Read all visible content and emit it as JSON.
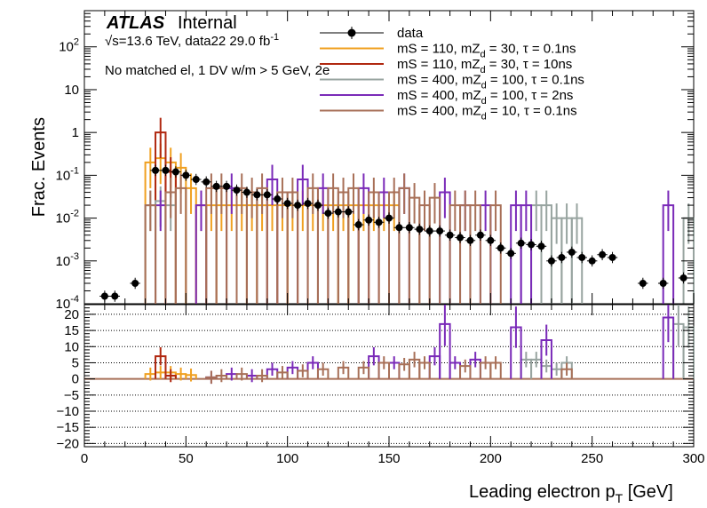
{
  "chart_data": [
    {
      "type": "histogram",
      "panel": "main",
      "ylabel": "Frac. Events",
      "yscale": "log",
      "ylim": [
        0.0001,
        700
      ],
      "xlim": [
        0,
        300
      ],
      "ytick_labels": [
        "10^{-4}",
        "10^{-3}",
        "10^{-2}",
        "10^{-1}",
        "1",
        "10",
        "10^{2}"
      ],
      "atlas_label": "ATLAS",
      "atlas_status": "Internal",
      "energy_text": "√s=13.6 TeV, data22 29.0 fb",
      "energy_sup": "-1",
      "selection_text": "No matched el, 1 DV w/m > 5 GeV, 2e",
      "legend": [
        {
          "label": "data",
          "color": "#000000",
          "kind": "marker"
        },
        {
          "label": "mS = 110, mZ_d = 30, τ = 0.1ns",
          "color": "#f0a020",
          "kind": "line"
        },
        {
          "label": "mS = 110, mZ_d = 30, τ = 10ns",
          "color": "#b02810",
          "kind": "line"
        },
        {
          "label": "mS = 400, mZ_d = 100, τ = 0.1ns",
          "color": "#98a4a0",
          "kind": "line"
        },
        {
          "label": "mS = 400, mZ_d = 100, τ = 2ns",
          "color": "#7a2ab8",
          "kind": "line"
        },
        {
          "label": "mS = 400, mZ_d = 10, τ = 0.1ns",
          "color": "#a87058",
          "kind": "line"
        }
      ],
      "data_points": [
        {
          "x": 10,
          "y": 0.00015
        },
        {
          "x": 15,
          "y": 0.00015
        },
        {
          "x": 25,
          "y": 0.0003
        },
        {
          "x": 35,
          "y": 0.13
        },
        {
          "x": 40,
          "y": 0.13
        },
        {
          "x": 45,
          "y": 0.12
        },
        {
          "x": 50,
          "y": 0.1
        },
        {
          "x": 55,
          "y": 0.08
        },
        {
          "x": 60,
          "y": 0.07
        },
        {
          "x": 65,
          "y": 0.055
        },
        {
          "x": 70,
          "y": 0.055
        },
        {
          "x": 75,
          "y": 0.045
        },
        {
          "x": 80,
          "y": 0.04
        },
        {
          "x": 85,
          "y": 0.035
        },
        {
          "x": 90,
          "y": 0.035
        },
        {
          "x": 95,
          "y": 0.028
        },
        {
          "x": 100,
          "y": 0.022
        },
        {
          "x": 105,
          "y": 0.02
        },
        {
          "x": 110,
          "y": 0.022
        },
        {
          "x": 115,
          "y": 0.02
        },
        {
          "x": 120,
          "y": 0.013
        },
        {
          "x": 125,
          "y": 0.014
        },
        {
          "x": 130,
          "y": 0.014
        },
        {
          "x": 135,
          "y": 0.007
        },
        {
          "x": 140,
          "y": 0.009
        },
        {
          "x": 145,
          "y": 0.008
        },
        {
          "x": 150,
          "y": 0.01
        },
        {
          "x": 155,
          "y": 0.006
        },
        {
          "x": 160,
          "y": 0.006
        },
        {
          "x": 165,
          "y": 0.0055
        },
        {
          "x": 170,
          "y": 0.005
        },
        {
          "x": 175,
          "y": 0.005
        },
        {
          "x": 180,
          "y": 0.004
        },
        {
          "x": 185,
          "y": 0.0035
        },
        {
          "x": 190,
          "y": 0.003
        },
        {
          "x": 195,
          "y": 0.004
        },
        {
          "x": 200,
          "y": 0.003
        },
        {
          "x": 205,
          "y": 0.002
        },
        {
          "x": 210,
          "y": 0.0015
        },
        {
          "x": 215,
          "y": 0.0026
        },
        {
          "x": 220,
          "y": 0.0024
        },
        {
          "x": 225,
          "y": 0.0022
        },
        {
          "x": 230,
          "y": 0.001
        },
        {
          "x": 235,
          "y": 0.0012
        },
        {
          "x": 240,
          "y": 0.0016
        },
        {
          "x": 245,
          "y": 0.0012
        },
        {
          "x": 250,
          "y": 0.001
        },
        {
          "x": 255,
          "y": 0.0014
        },
        {
          "x": 260,
          "y": 0.0012
        },
        {
          "x": 275,
          "y": 0.0003
        },
        {
          "x": 285,
          "y": 0.0003
        },
        {
          "x": 295,
          "y": 0.0004
        }
      ],
      "signal_series": [
        {
          "name": "mS = 110, mZ_d = 30, τ = 0.1ns",
          "color": "#f0a020",
          "bins": [
            [
              30,
              35,
              0.2
            ],
            [
              35,
              40,
              0.25
            ],
            [
              40,
              45,
              0.2
            ],
            [
              45,
              50,
              0.15
            ],
            [
              50,
              55,
              0.05
            ],
            [
              55,
              60,
              0.02
            ],
            [
              60,
              65,
              0.02
            ],
            [
              65,
              70,
              0.02
            ],
            [
              70,
              75,
              0.02
            ],
            [
              75,
              80,
              0.02
            ],
            [
              80,
              85,
              0.02
            ],
            [
              85,
              90,
              0.02
            ],
            [
              90,
              95,
              0.02
            ],
            [
              95,
              100,
              0.02
            ],
            [
              100,
              105,
              0.02
            ],
            [
              105,
              110,
              0.02
            ],
            [
              110,
              115,
              0.02
            ],
            [
              115,
              120,
              0.02
            ],
            [
              120,
              125,
              0.02
            ],
            [
              125,
              130,
              0.02
            ],
            [
              130,
              135,
              0.02
            ],
            [
              135,
              140,
              0.02
            ],
            [
              140,
              145,
              0.02
            ],
            [
              145,
              150,
              0.02
            ],
            [
              150,
              155,
              0.02
            ]
          ]
        },
        {
          "name": "mS = 110, mZ_d = 30, τ = 10ns",
          "color": "#b02810",
          "bins": [
            [
              35,
              40,
              1.0
            ],
            [
              40,
              45,
              0.12
            ]
          ]
        },
        {
          "name": "mS = 400, mZ_d = 100, τ = 0.1ns",
          "color": "#98a4a0",
          "bins": [
            [
              30,
              35,
              0.02
            ],
            [
              35,
              40,
              0.025
            ],
            [
              40,
              45,
              0.02
            ],
            [
              220,
              225,
              0.02
            ],
            [
              225,
              230,
              0.02
            ],
            [
              230,
              235,
              0.01
            ],
            [
              235,
              240,
              0.01
            ],
            [
              240,
              245,
              0.01
            ],
            [
              295,
              300,
              0.01
            ]
          ]
        },
        {
          "name": "mS = 400, mZ_d = 100, τ = 2ns",
          "color": "#7a2ab8",
          "bins": [
            [
              35,
              40,
              0.02
            ],
            [
              55,
              60,
              0.02
            ],
            [
              70,
              75,
              0.05
            ],
            [
              90,
              95,
              0.08
            ],
            [
              105,
              110,
              0.08
            ],
            [
              115,
              120,
              0.05
            ],
            [
              135,
              140,
              0.05
            ],
            [
              145,
              150,
              0.04
            ],
            [
              155,
              160,
              0.05
            ],
            [
              175,
              180,
              0.04
            ],
            [
              185,
              190,
              0.02
            ],
            [
              195,
              200,
              0.02
            ],
            [
              210,
              215,
              0.02
            ],
            [
              215,
              220,
              0.02
            ],
            [
              285,
              290,
              0.02
            ]
          ]
        },
        {
          "name": "mS = 400, mZ_d = 10, τ = 0.1ns",
          "color": "#a87058",
          "bins": [
            [
              30,
              35,
              0.02
            ],
            [
              40,
              45,
              0.04
            ],
            [
              45,
              50,
              0.05
            ],
            [
              60,
              65,
              0.05
            ],
            [
              65,
              70,
              0.05
            ],
            [
              75,
              80,
              0.05
            ],
            [
              80,
              85,
              0.04
            ],
            [
              85,
              90,
              0.05
            ],
            [
              95,
              100,
              0.04
            ],
            [
              100,
              105,
              0.04
            ],
            [
              110,
              115,
              0.05
            ],
            [
              120,
              125,
              0.05
            ],
            [
              125,
              130,
              0.04
            ],
            [
              130,
              135,
              0.05
            ],
            [
              140,
              145,
              0.04
            ],
            [
              150,
              155,
              0.04
            ],
            [
              155,
              160,
              0.05
            ],
            [
              160,
              165,
              0.03
            ],
            [
              165,
              170,
              0.02
            ],
            [
              170,
              175,
              0.03
            ],
            [
              180,
              185,
              0.02
            ],
            [
              185,
              190,
              0.02
            ],
            [
              190,
              195,
              0.02
            ],
            [
              200,
              205,
              0.02
            ]
          ]
        }
      ]
    },
    {
      "type": "histogram",
      "panel": "ratio",
      "xlabel": "Leading electron p",
      "xlabel_sub": "T",
      "xlabel_unit": " [GeV]",
      "xlim": [
        0,
        300
      ],
      "ylim": [
        -21,
        23
      ],
      "xtick_labels": [
        "0",
        "50",
        "100",
        "150",
        "200",
        "250",
        "300"
      ],
      "ytick_labels": [
        "−20",
        "−15",
        "−10",
        "−5",
        "0",
        "5",
        "10",
        "15",
        "20"
      ],
      "ratio_series": [
        {
          "color": "#f0a020",
          "bins": [
            [
              30,
              35,
              1.5
            ],
            [
              35,
              40,
              2
            ],
            [
              40,
              45,
              2
            ],
            [
              45,
              50,
              1.5
            ],
            [
              50,
              55,
              1.2
            ]
          ]
        },
        {
          "color": "#b02810",
          "bins": [
            [
              35,
              40,
              7
            ],
            [
              40,
              45,
              1
            ]
          ]
        },
        {
          "color": "#98a4a0",
          "bins": [
            [
              215,
              220,
              6
            ],
            [
              220,
              225,
              6
            ],
            [
              225,
              230,
              4
            ],
            [
              230,
              235,
              3
            ],
            [
              235,
              240,
              5
            ],
            [
              290,
              295,
              17
            ],
            [
              295,
              300,
              16
            ]
          ]
        },
        {
          "color": "#7a2ab8",
          "bins": [
            [
              60,
              65,
              0.5
            ],
            [
              70,
              75,
              1.5
            ],
            [
              80,
              85,
              1
            ],
            [
              90,
              95,
              3
            ],
            [
              100,
              105,
              3.5
            ],
            [
              110,
              115,
              5
            ],
            [
              140,
              145,
              7
            ],
            [
              150,
              155,
              5
            ],
            [
              170,
              175,
              7
            ],
            [
              175,
              180,
              17
            ],
            [
              180,
              185,
              5
            ],
            [
              190,
              195,
              6
            ],
            [
              210,
              215,
              16
            ],
            [
              225,
              230,
              12
            ],
            [
              285,
              290,
              19
            ]
          ]
        },
        {
          "color": "#a87058",
          "bins": [
            [
              60,
              65,
              0.5
            ],
            [
              65,
              70,
              1
            ],
            [
              75,
              80,
              1.5
            ],
            [
              85,
              90,
              1
            ],
            [
              95,
              100,
              2
            ],
            [
              105,
              110,
              2.5
            ],
            [
              115,
              120,
              3
            ],
            [
              125,
              130,
              3.5
            ],
            [
              135,
              140,
              3.5
            ],
            [
              145,
              150,
              5
            ],
            [
              155,
              160,
              4.5
            ],
            [
              160,
              165,
              6
            ],
            [
              165,
              170,
              5
            ],
            [
              185,
              190,
              4
            ],
            [
              195,
              200,
              5
            ],
            [
              200,
              205,
              5
            ],
            [
              235,
              240,
              3
            ]
          ]
        }
      ]
    }
  ]
}
